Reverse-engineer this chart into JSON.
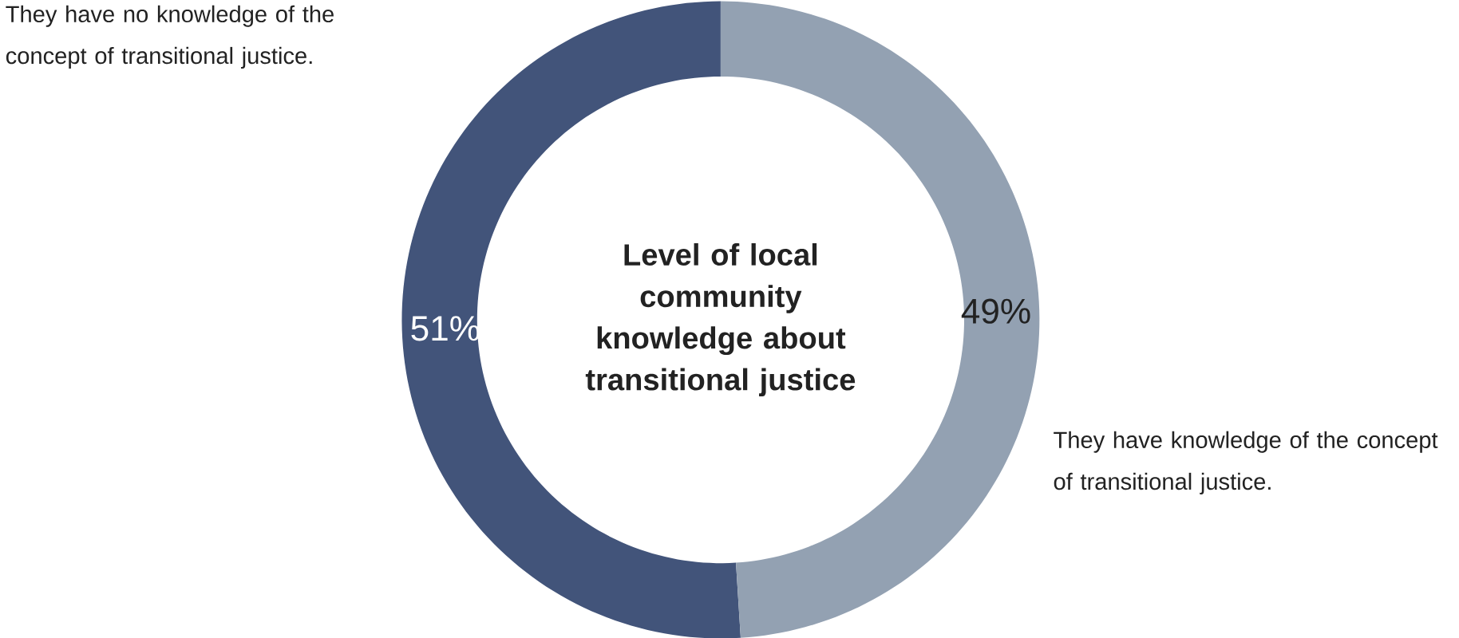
{
  "chart_data": {
    "type": "donut",
    "title": "Level of local community knowledge about transitional justice",
    "categories": [
      "They have no knowledge of the concept of transitional justice.",
      "They have knowledge of the concept of transitional justice."
    ],
    "values": [
      51,
      49
    ],
    "value_labels": [
      "51%",
      "49%"
    ],
    "colors": [
      "#42547a",
      "#93a1b2"
    ]
  }
}
